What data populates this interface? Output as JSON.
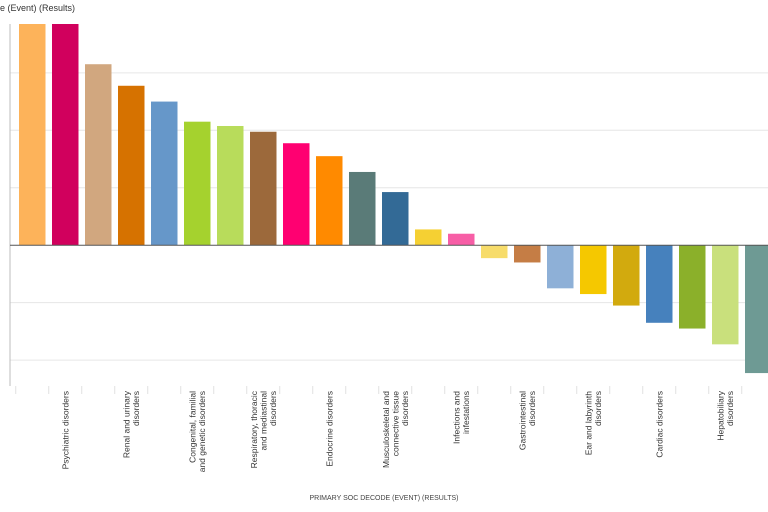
{
  "chart_data": {
    "type": "bar",
    "title": "",
    "ylabel": "e (Event) (Results)",
    "xlabel": "PRIMARY SOC DECODE (EVENT) (RESULTS)",
    "ylim": [
      -4.9,
      7.7
    ],
    "grid": true,
    "categories": [
      "",
      "Psychiatric disorders",
      "",
      "Renal and urinary disorders",
      "",
      "Congenital, familial and genetic disorders",
      "",
      "Respiratory, thoracic and mediastinal disorders",
      "",
      "Endocrine disorders",
      "",
      "Musculoskeletal and connective tissue disorders",
      "",
      "Infections and infestations",
      "",
      "Gastrointestinal disorders",
      "",
      "Ear and labyrinth disorders",
      "",
      "Cardiac disorders",
      "",
      "Hepatobiliary disorders",
      ""
    ],
    "values": [
      7.7,
      7.7,
      6.3,
      5.55,
      5.0,
      4.3,
      4.15,
      3.95,
      3.55,
      3.1,
      2.55,
      1.85,
      0.55,
      0.4,
      -0.45,
      -0.6,
      -1.5,
      -1.7,
      -2.1,
      -2.7,
      -2.9,
      -3.45,
      -4.45
    ],
    "colors": [
      "#fdb35a",
      "#d1005d",
      "#d1a77f",
      "#d67200",
      "#6697c9",
      "#a5d22e",
      "#b8dc5b",
      "#9c693b",
      "#ff0071",
      "#ff8a00",
      "#5a7b78",
      "#336a96",
      "#f5d033",
      "#f75ea6",
      "#f7dc6a",
      "#c57d45",
      "#8eb0d7",
      "#f5c800",
      "#d2aa0e",
      "#4681bd",
      "#8bb02a",
      "#c9e07c",
      "#6e9a94"
    ]
  }
}
